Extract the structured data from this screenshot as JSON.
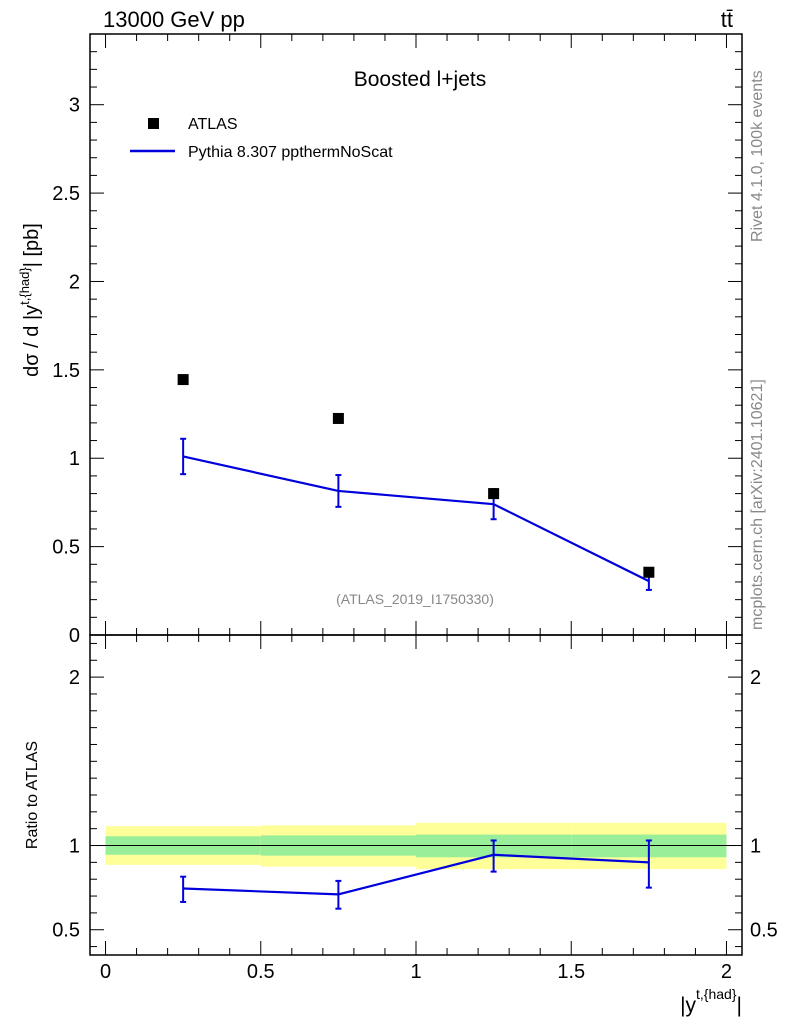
{
  "header": {
    "energy_label": "13000 GeV pp",
    "process_label": "tt̄"
  },
  "side_labels": {
    "rivet": "Rivet 4.1.0,  100k events",
    "mcplots": "mcplots.cern.ch [arXiv:2401.10621]"
  },
  "colors": {
    "mc_line": "#0000dd",
    "data_marker": "#000000",
    "band_inner": "#99ee99",
    "band_outer": "#ffff99",
    "watermark": "#888888"
  },
  "chart_data": [
    {
      "type": "scatter",
      "panel": "main",
      "title": "Boosted l+jets",
      "analysis_label": "(ATLAS_2019_I1750330)",
      "xlabel": "|y^{t,{had}}|",
      "ylabel": "dσ / d |y^{t,{had}}| [pb]",
      "xlim": [
        -0.05,
        2.05
      ],
      "ylim": [
        0,
        3.4
      ],
      "yticks": [
        "0",
        "0.5",
        "1",
        "1.5",
        "2",
        "2.5",
        "3"
      ],
      "legend_position": "top-left",
      "series": [
        {
          "name": "ATLAS",
          "style": "marker",
          "x": [
            0.25,
            0.75,
            1.25,
            1.75
          ],
          "values": [
            1.445,
            1.225,
            0.8,
            0.355
          ]
        },
        {
          "name": "Pythia 8.307 ppthermNoScat",
          "style": "line",
          "x": [
            0.25,
            0.75,
            1.25,
            1.75
          ],
          "values": [
            1.01,
            0.815,
            0.74,
            0.305
          ],
          "err_low": [
            0.1,
            0.09,
            0.085,
            0.05
          ],
          "err_high": [
            0.1,
            0.09,
            0.085,
            0.05
          ]
        }
      ]
    },
    {
      "type": "line",
      "panel": "ratio",
      "xlabel": "|y^{t,{had}}|",
      "ylabel": "Ratio to ATLAS",
      "xlim": [
        -0.05,
        2.05
      ],
      "ylim": [
        0.35,
        2.25
      ],
      "yticks": [
        "0.5",
        "1",
        "2"
      ],
      "xticks": [
        "0",
        "0.5",
        "1",
        "1.5",
        "2"
      ],
      "bins": [
        [
          0,
          0.5
        ],
        [
          0.5,
          1
        ],
        [
          1,
          1.5
        ],
        [
          1.5,
          2
        ]
      ],
      "band_inner": [
        [
          0.945,
          1.055
        ],
        [
          0.94,
          1.06
        ],
        [
          0.93,
          1.065
        ],
        [
          0.93,
          1.065
        ]
      ],
      "band_outer": [
        [
          0.885,
          1.115
        ],
        [
          0.875,
          1.12
        ],
        [
          0.86,
          1.135
        ],
        [
          0.86,
          1.135
        ]
      ],
      "series": [
        {
          "name": "Pythia 8.307 ppthermNoScat",
          "x": [
            0.25,
            0.75,
            1.25,
            1.75
          ],
          "values": [
            0.745,
            0.71,
            0.945,
            0.9
          ],
          "err_low": [
            0.08,
            0.085,
            0.1,
            0.15
          ],
          "err_high": [
            0.07,
            0.08,
            0.085,
            0.13
          ]
        }
      ]
    }
  ]
}
